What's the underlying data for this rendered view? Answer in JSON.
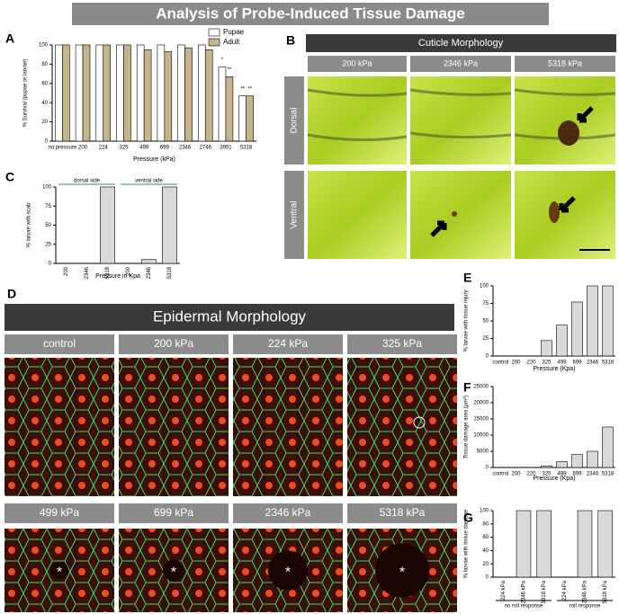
{
  "title": "Analysis of Probe-Induced Tissue Damage",
  "cuticle": {
    "label": "B",
    "header": "Cuticle Morphology",
    "columns": [
      "200 kPa",
      "2346 kPa",
      "5318 kPa"
    ],
    "rows": [
      "Dorsal",
      "Ventral"
    ]
  },
  "epidermal": {
    "label": "D",
    "header": "Epidermal Morphology",
    "labels": [
      "control",
      "200 kPa",
      "224 kPa",
      "325 kPa",
      "499 kPa",
      "699 kPa",
      "2346 kPa",
      "5318 kPa"
    ],
    "wound_marker": "*"
  },
  "chart_data": [
    {
      "type": "bar",
      "label": "A",
      "ylabel": "% Survival (pupae or larvae)",
      "xlabel": "Pressure (kPa)",
      "categories": [
        "no pressure",
        "200",
        "224",
        "325",
        "499",
        "699",
        "2346",
        "2746",
        "3951",
        "5318"
      ],
      "series": [
        {
          "name": "Pupae",
          "color": "#ffffff",
          "values": [
            100,
            100,
            100,
            100,
            100,
            100,
            100,
            100,
            77,
            47
          ]
        },
        {
          "name": "Adult",
          "color": "#c8b48a",
          "values": [
            100,
            100,
            100,
            100,
            95,
            93,
            97,
            95,
            67,
            47
          ]
        }
      ],
      "significance": [
        {
          "category": "3951",
          "series": "Pupae",
          "label": "*"
        },
        {
          "category": "3951",
          "series": "Adult",
          "label": "**"
        },
        {
          "category": "5318",
          "series": "Pupae",
          "label": "**"
        },
        {
          "category": "5318",
          "series": "Adult",
          "label": "**"
        }
      ],
      "ylim": [
        0,
        100
      ],
      "yticks": [
        0,
        20,
        40,
        60,
        80,
        100
      ]
    },
    {
      "type": "bar",
      "label": "C",
      "ylabel": "% larvae with scab",
      "xlabel": "Pressure in Kpa",
      "categories": [
        "200",
        "2346",
        "5318",
        "200",
        "2346",
        "5318"
      ],
      "values": [
        0,
        0,
        100,
        0,
        5,
        100
      ],
      "color": "#d9d9d9",
      "group_labels": [
        "dorsal side",
        "ventral side"
      ],
      "ylim": [
        0,
        100
      ],
      "yticks": [
        0,
        25,
        50,
        75,
        100
      ]
    },
    {
      "type": "bar",
      "label": "E",
      "ylabel": "% larvae with tissue injury",
      "xlabel": "Pressure (Kpa)",
      "categories": [
        "control",
        "200",
        "220",
        "325",
        "499",
        "699",
        "2346",
        "5318"
      ],
      "values": [
        0,
        0,
        0,
        22,
        44,
        77,
        100,
        100
      ],
      "color": "#d9d9d9",
      "ylim": [
        0,
        100
      ],
      "yticks": [
        0,
        25,
        50,
        75,
        100
      ]
    },
    {
      "type": "bar",
      "label": "F",
      "ylabel": "Tissue damage area (µm²)",
      "xlabel": "Pressure (Kpa)",
      "categories": [
        "control",
        "200",
        "220",
        "325",
        "499",
        "699",
        "2346",
        "5318"
      ],
      "values": [
        0,
        0,
        0,
        500,
        1800,
        4000,
        5000,
        12500
      ],
      "color": "#d9d9d9",
      "ylim": [
        0,
        25000
      ],
      "yticks": [
        0,
        5000,
        10000,
        15000,
        20000,
        25000
      ]
    },
    {
      "type": "bar",
      "label": "G",
      "ylabel": "% larvae with tissue damage",
      "categories": [
        "224 kPa",
        "2346 kPa",
        "5318 kPa",
        "224 kPa",
        "2346 kPa",
        "5318 kPa"
      ],
      "values": [
        0,
        100,
        100,
        0,
        100,
        100
      ],
      "color": "#d9d9d9",
      "group_labels": [
        "no roll response",
        "roll response"
      ],
      "ylim": [
        0,
        100
      ],
      "yticks": [
        0,
        20,
        40,
        60,
        80,
        100
      ]
    }
  ]
}
